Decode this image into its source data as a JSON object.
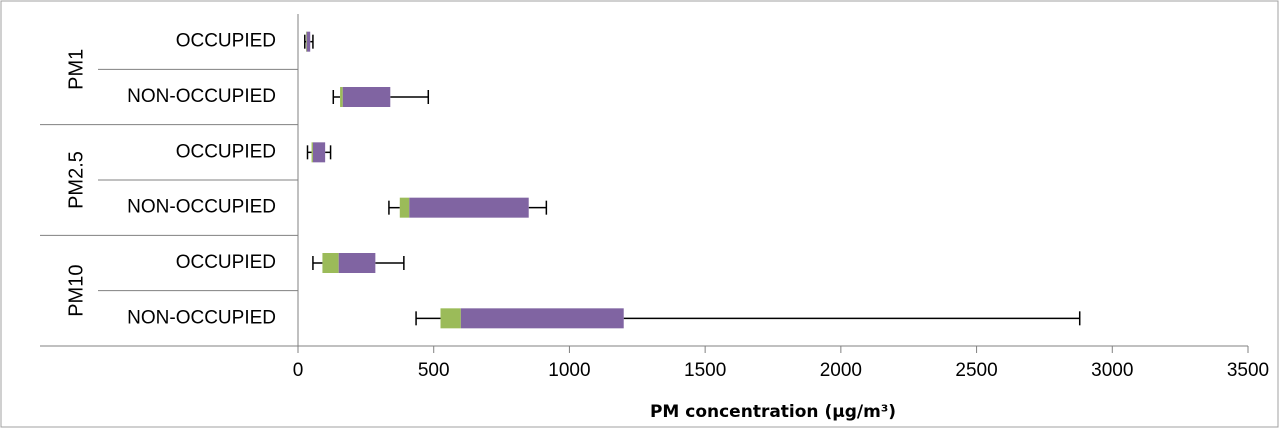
{
  "chart_data": {
    "type": "bar",
    "orientation": "horizontal",
    "stacked": true,
    "title": "",
    "xlabel": "PM concentration (µg/m³)",
    "ylabel": "",
    "xlim": [
      0,
      3500
    ],
    "xticks": [
      0,
      500,
      1000,
      1500,
      2000,
      2500,
      3000,
      3500
    ],
    "grid": false,
    "legend": "none",
    "colors": {
      "lower_box": "#9bbb59",
      "upper_box": "#8064a2",
      "whisker": "#000000",
      "axis": "#808080"
    },
    "groups": [
      {
        "label": "PM1",
        "categories": [
          "OCCUPIED",
          "NON-OCCUPIED"
        ]
      },
      {
        "label": "PM2.5",
        "categories": [
          "OCCUPIED",
          "NON-OCCUPIED"
        ]
      },
      {
        "label": "PM10",
        "categories": [
          "OCCUPIED",
          "NON-OCCUPIED"
        ]
      }
    ],
    "boxes": [
      {
        "group": "PM1",
        "category": "OCCUPIED",
        "min": 25,
        "q1": 30,
        "median": 32,
        "q3": 45,
        "max": 55
      },
      {
        "group": "PM1",
        "category": "NON-OCCUPIED",
        "min": 130,
        "q1": 155,
        "median": 165,
        "q3": 340,
        "max": 480
      },
      {
        "group": "PM2.5",
        "category": "OCCUPIED",
        "min": 35,
        "q1": 50,
        "median": 55,
        "q3": 100,
        "max": 120
      },
      {
        "group": "PM2.5",
        "category": "NON-OCCUPIED",
        "min": 335,
        "q1": 375,
        "median": 410,
        "q3": 850,
        "max": 915
      },
      {
        "group": "PM10",
        "category": "OCCUPIED",
        "min": 55,
        "q1": 90,
        "median": 150,
        "q3": 285,
        "max": 390
      },
      {
        "group": "PM10",
        "category": "NON-OCCUPIED",
        "min": 435,
        "q1": 525,
        "median": 600,
        "q3": 1200,
        "max": 2880
      }
    ]
  }
}
